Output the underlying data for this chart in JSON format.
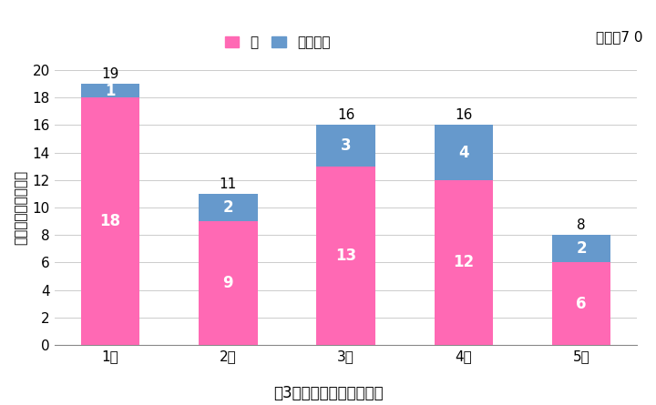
{
  "categories": [
    "1歳",
    "2歳",
    "3歳",
    "4歳",
    "5歳"
  ],
  "window_values": [
    18,
    9,
    13,
    12,
    6
  ],
  "veranda_values": [
    1,
    2,
    3,
    4,
    2
  ],
  "totals": [
    19,
    11,
    16,
    16,
    8
  ],
  "window_color": "#FF69B4",
  "veranda_color": "#6699CC",
  "bar_width": 0.5,
  "ylim": [
    0,
    20
  ],
  "yticks": [
    0,
    2,
    4,
    6,
    8,
    10,
    12,
    14,
    16,
    18,
    20
  ],
  "ylabel": "救急搞送人員（人）",
  "legend_window": "窓",
  "legend_veranda": "ベランダ",
  "total_label": "総数　7 0",
  "figure_caption": "図3　年齢別救急搞送人員",
  "label_fontsize": 11,
  "tick_fontsize": 11,
  "bar_label_fontsize": 12,
  "total_label_fontsize": 11,
  "caption_fontsize": 12,
  "background_color": "#FFFFFF"
}
